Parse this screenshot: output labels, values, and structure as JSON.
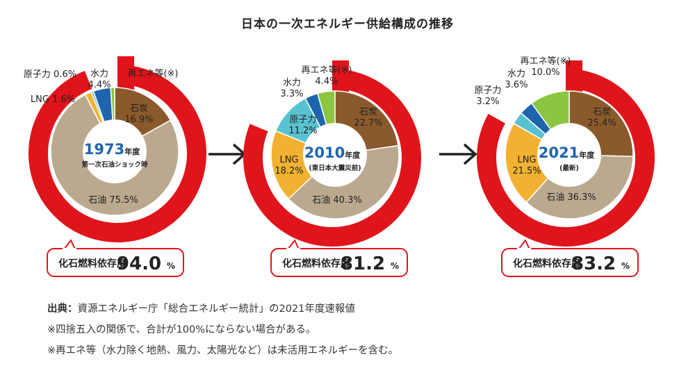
{
  "title": "日本の一次エネルギー供給構成の推移",
  "chart_data": [
    {
      "type": "pie",
      "year": "1973",
      "year_suffix": "年度",
      "subtitle": "第一次石油ショック時",
      "series": [
        {
          "name": "石炭",
          "value": 16.9,
          "color": "#8b5a2b"
        },
        {
          "name": "石油",
          "value": 75.5,
          "color": "#bba98f"
        },
        {
          "name": "LNG",
          "value": 1.6,
          "color": "#f2b130"
        },
        {
          "name": "原子力",
          "value": 0.6,
          "color": "#59c2d0"
        },
        {
          "name": "水力",
          "value": 4.4,
          "color": "#1f64ad"
        },
        {
          "name": "再エネ等(※)",
          "value": 1.0,
          "color": "#8cc53f"
        }
      ],
      "fossil_label": "化石燃料依存度",
      "fossil_value": "94.0",
      "fossil_unit": "%",
      "fossil_share": 94.0
    },
    {
      "type": "pie",
      "year": "2010",
      "year_suffix": "年度",
      "subtitle": "(東日本大震災前)",
      "series": [
        {
          "name": "石炭",
          "value": 22.7,
          "color": "#8b5a2b"
        },
        {
          "name": "石油",
          "value": 40.3,
          "color": "#bba98f"
        },
        {
          "name": "LNG",
          "value": 18.2,
          "color": "#f2b130"
        },
        {
          "name": "原子力",
          "value": 11.2,
          "color": "#59c2d0"
        },
        {
          "name": "水力",
          "value": 3.3,
          "color": "#1f64ad"
        },
        {
          "name": "再エネ等(※)",
          "value": 4.4,
          "color": "#8cc53f"
        }
      ],
      "fossil_label": "化石燃料依存度",
      "fossil_value": "81.2",
      "fossil_unit": "%",
      "fossil_share": 81.2
    },
    {
      "type": "pie",
      "year": "2021",
      "year_suffix": "年度",
      "subtitle": "(最新)",
      "series": [
        {
          "name": "石炭",
          "value": 25.4,
          "color": "#8b5a2b"
        },
        {
          "name": "石油",
          "value": 36.3,
          "color": "#bba98f"
        },
        {
          "name": "LNG",
          "value": 21.5,
          "color": "#f2b130"
        },
        {
          "name": "原子力",
          "value": 3.2,
          "color": "#59c2d0"
        },
        {
          "name": "水力",
          "value": 3.6,
          "color": "#1f64ad"
        },
        {
          "name": "再エネ等(※)",
          "value": 10.0,
          "color": "#8cc53f"
        }
      ],
      "fossil_label": "化石燃料依存度",
      "fossil_value": "83.2",
      "fossil_unit": "%",
      "fossil_share": 83.2
    }
  ],
  "notes": {
    "source_lead": "出典：",
    "source_text": "資源エネルギー庁「総合エネルギー統計」の2021年度速報値",
    "note1": "※四捨五入の関係で、合計が100%にならない場合がある。",
    "note2": "※再エネ等（水力除く地熱、風力、太陽光など）は未活用エネルギーを含む。"
  },
  "colors": {
    "ring": "#e0141b",
    "accent_blue": "#1f64ad"
  }
}
